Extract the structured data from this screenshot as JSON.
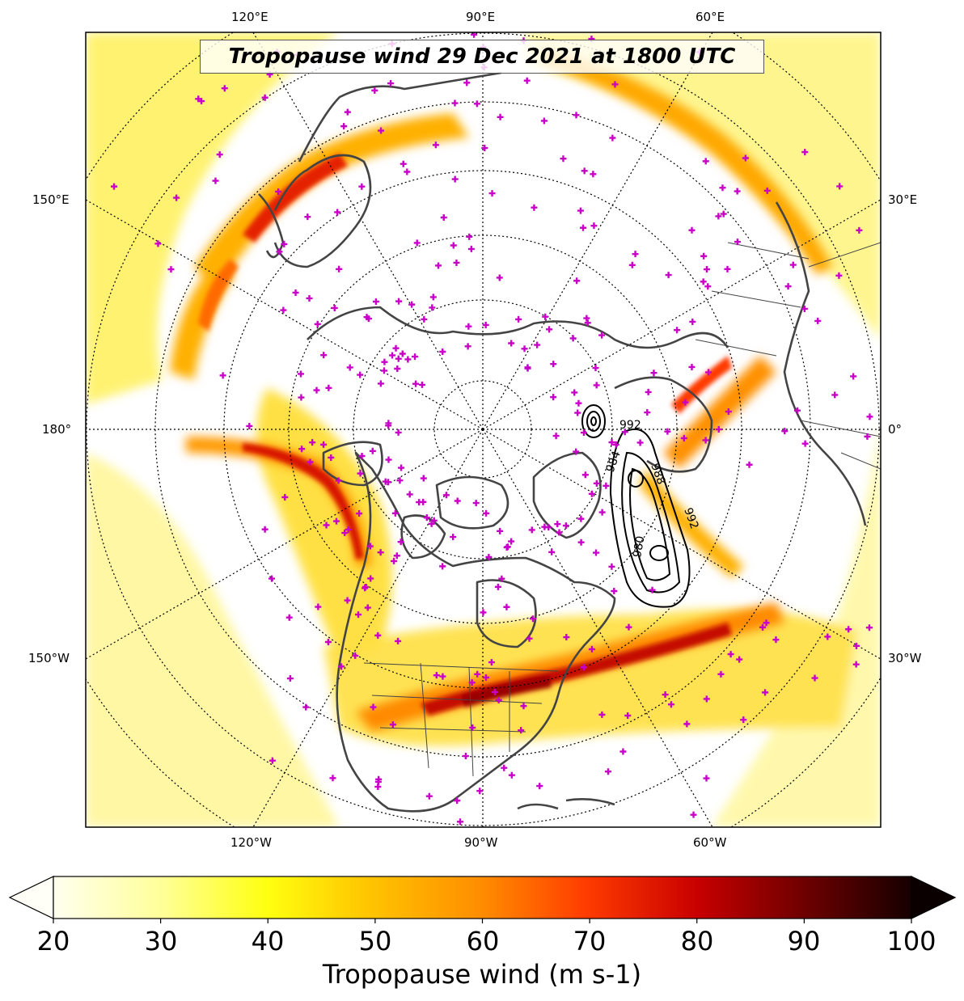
{
  "title": "Tropopause wind 29 Dec 2021 at 1800 UTC",
  "longitude_labels": {
    "top": [
      "120°E",
      "90°E",
      "60°E"
    ],
    "bottom": [
      "120°W",
      "90°W",
      "60°W"
    ],
    "left": [
      "150°E",
      "180°",
      "150°W"
    ],
    "right": [
      "30°E",
      "0°",
      "30°W"
    ]
  },
  "colorbar": {
    "label": "Tropopause wind (m s-1)",
    "ticks": [
      "20",
      "30",
      "40",
      "50",
      "60",
      "70",
      "80",
      "90",
      "100"
    ],
    "range": [
      20,
      100
    ],
    "extend": "both",
    "colormap": "hot_r"
  },
  "contour_labels": [
    "992",
    "984",
    "988",
    "980",
    "992"
  ],
  "colors": {
    "observation_marker": "#c800c8",
    "coastline": "#444444",
    "contour": "#000000"
  }
}
